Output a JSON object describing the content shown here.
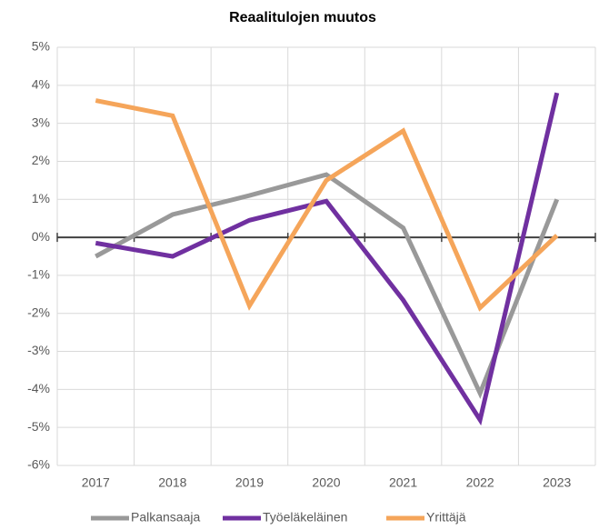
{
  "chart_data": {
    "type": "line",
    "title": "Reaalitulojen muutos",
    "categories": [
      "2017",
      "2018",
      "2019",
      "2020",
      "2021",
      "2022",
      "2023"
    ],
    "series": [
      {
        "name": "Palkansaaja",
        "color": "#999999",
        "values": [
          -0.5,
          0.6,
          1.1,
          1.65,
          0.25,
          -4.1,
          1.0
        ]
      },
      {
        "name": "Työeläkeläinen",
        "color": "#7030a0",
        "values": [
          -0.15,
          -0.5,
          0.45,
          0.95,
          -1.65,
          -4.8,
          3.8
        ]
      },
      {
        "name": "Yrittäjä",
        "color": "#f5a55a",
        "values": [
          3.6,
          3.2,
          -1.8,
          1.5,
          2.8,
          -1.85,
          0.05
        ]
      }
    ],
    "ylim": [
      -6,
      5
    ],
    "yticks": [
      {
        "value": 5,
        "label": "5%"
      },
      {
        "value": 4,
        "label": "4%"
      },
      {
        "value": 3,
        "label": "3%"
      },
      {
        "value": 2,
        "label": "2%"
      },
      {
        "value": 1,
        "label": "1%"
      },
      {
        "value": 0,
        "label": "0%"
      },
      {
        "value": -1,
        "label": "-1%"
      },
      {
        "value": -2,
        "label": "-2%"
      },
      {
        "value": -3,
        "label": "-3%"
      },
      {
        "value": -4,
        "label": "-4%"
      },
      {
        "value": -5,
        "label": "-5%"
      },
      {
        "value": -6,
        "label": "-6%"
      }
    ],
    "grid": true,
    "legend": "bottom"
  }
}
